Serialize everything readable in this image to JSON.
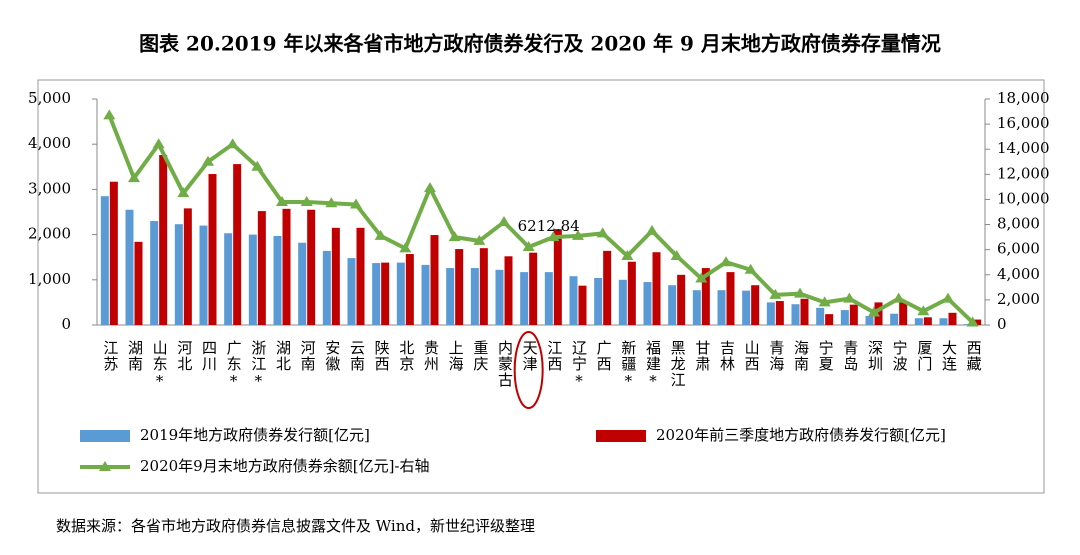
{
  "chart_data": {
    "type": "bar-line",
    "title": "图表 20.2019 年以来各省市地方政府债券发行及 2020 年 9 月末地方政府债券存量情况",
    "source": "数据来源：各省市地方政府债券信息披露文件及 Wind，新世纪评级整理",
    "categories": [
      "江苏",
      "湖南",
      "山东*",
      "河北",
      "四川",
      "广东*",
      "浙江*",
      "湖北",
      "河南",
      "安徽",
      "云南",
      "陕西",
      "北京",
      "贵州",
      "上海",
      "重庆",
      "内蒙古",
      "天津",
      "江西",
      "辽宁*",
      "广西",
      "新疆*",
      "福建*",
      "黑龙江",
      "甘肃",
      "吉林",
      "山西",
      "青海",
      "海南",
      "宁夏",
      "青岛",
      "深圳",
      "宁波",
      "厦门",
      "大连",
      "西藏"
    ],
    "series": [
      {
        "name": "2019年地方政府债券发行额[亿元]",
        "type": "bar",
        "color": "#5b9bd5",
        "values": [
          2850,
          2550,
          2300,
          2230,
          2200,
          2030,
          2000,
          1970,
          1820,
          1640,
          1480,
          1370,
          1380,
          1330,
          1260,
          1260,
          1220,
          1170,
          1170,
          1080,
          1040,
          1000,
          950,
          880,
          770,
          770,
          760,
          500,
          460,
          380,
          330,
          200,
          250,
          150,
          150,
          20
        ]
      },
      {
        "name": "2020年前三季度地方政府债券发行额[亿元]",
        "type": "bar",
        "color": "#c00000",
        "values": [
          3170,
          1840,
          3760,
          2580,
          3340,
          3560,
          2520,
          2570,
          2550,
          2150,
          2150,
          1380,
          1570,
          1990,
          1680,
          1700,
          1520,
          1600,
          2120,
          870,
          1640,
          1400,
          1610,
          1110,
          1260,
          1170,
          880,
          530,
          580,
          240,
          450,
          500,
          500,
          170,
          270,
          120
        ]
      },
      {
        "name": "2020年9月末地方政府债券余额[亿元]-右轴",
        "type": "line",
        "axis": "y2",
        "color": "#70ad47",
        "values": [
          16700,
          11700,
          14400,
          10500,
          13000,
          14400,
          12600,
          9800,
          9800,
          9700,
          9600,
          7100,
          6100,
          10900,
          7000,
          6700,
          8200,
          6212.84,
          7000,
          7100,
          7300,
          5500,
          7500,
          5500,
          3700,
          5000,
          4400,
          2400,
          2500,
          1800,
          2100,
          1000,
          2100,
          1100,
          2100,
          200
        ],
        "value_labels": [
          null,
          null,
          null,
          null,
          null,
          null,
          null,
          null,
          null,
          null,
          null,
          null,
          null,
          null,
          null,
          null,
          null,
          "6212.84",
          null,
          null,
          null,
          null,
          null,
          null,
          null,
          null,
          null,
          null,
          null,
          null,
          null,
          null,
          null,
          null,
          null,
          null
        ]
      }
    ],
    "ylim": [
      0,
      5000
    ],
    "yticks": [
      0,
      {
        "value": 1000,
        "label": "1,000"
      },
      {
        "value": 2000,
        "label": "2,000"
      },
      {
        "value": 3000,
        "label": "3,000"
      },
      {
        "value": 4000,
        "label": "4,000"
      },
      {
        "value": 5000,
        "label": "5,000"
      }
    ],
    "y2lim": [
      0,
      18000
    ],
    "y2ticks": [
      0,
      {
        "value": 2000,
        "label": "2,000"
      },
      {
        "value": 4000,
        "label": "4,000"
      },
      {
        "value": 6000,
        "label": "6,000"
      },
      {
        "value": 8000,
        "label": "8,000"
      },
      {
        "value": 10000,
        "label": "10,000"
      },
      {
        "value": 12000,
        "label": "12,000"
      },
      {
        "value": 14000,
        "label": "14,000"
      },
      {
        "value": 16000,
        "label": "16,000"
      },
      {
        "value": 18000,
        "label": "18,000"
      }
    ],
    "grid": false
  }
}
